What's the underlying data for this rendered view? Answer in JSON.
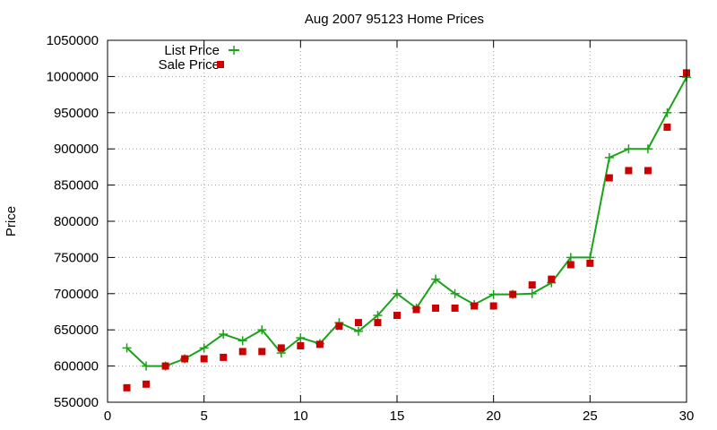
{
  "chart_data": {
    "type": "line",
    "title": "Aug 2007 95123 Home Prices",
    "xlabel": "",
    "ylabel": "Price",
    "xlim": [
      0,
      30
    ],
    "ylim": [
      550000,
      1050000
    ],
    "xticks": [
      0,
      5,
      10,
      15,
      20,
      25,
      30
    ],
    "yticks": [
      550000,
      600000,
      650000,
      700000,
      750000,
      800000,
      850000,
      900000,
      950000,
      1000000,
      1050000
    ],
    "grid": true,
    "legend_position": "top-left",
    "series": [
      {
        "name": "List Price",
        "style": "lines+points",
        "marker": "plus",
        "color": "#1aa31a",
        "x": [
          1,
          2,
          3,
          4,
          5,
          6,
          7,
          8,
          9,
          10,
          11,
          12,
          13,
          14,
          15,
          16,
          17,
          18,
          19,
          20,
          21,
          22,
          23,
          24,
          25,
          26,
          27,
          28,
          29,
          30
        ],
        "values": [
          625000,
          600000,
          600000,
          610000,
          625000,
          644000,
          635000,
          650000,
          618000,
          639000,
          631000,
          660000,
          648000,
          670000,
          700000,
          680000,
          720000,
          700000,
          685000,
          699000,
          699000,
          700000,
          715000,
          750000,
          750000,
          888000,
          900000,
          900000,
          950000,
          999000
        ]
      },
      {
        "name": "Sale Price",
        "style": "points",
        "marker": "square",
        "color": "#cc0000",
        "x": [
          1,
          2,
          3,
          4,
          5,
          6,
          7,
          8,
          9,
          10,
          11,
          12,
          13,
          14,
          15,
          16,
          17,
          18,
          19,
          20,
          21,
          22,
          23,
          24,
          25,
          26,
          27,
          28,
          29,
          30
        ],
        "values": [
          570000,
          575000,
          600000,
          610000,
          610000,
          612000,
          620000,
          620000,
          625000,
          628000,
          630000,
          655000,
          660000,
          660000,
          670000,
          678000,
          680000,
          680000,
          683000,
          683000,
          699000,
          712000,
          720000,
          740000,
          742000,
          860000,
          870000,
          870000,
          930000,
          1005000
        ]
      }
    ]
  }
}
